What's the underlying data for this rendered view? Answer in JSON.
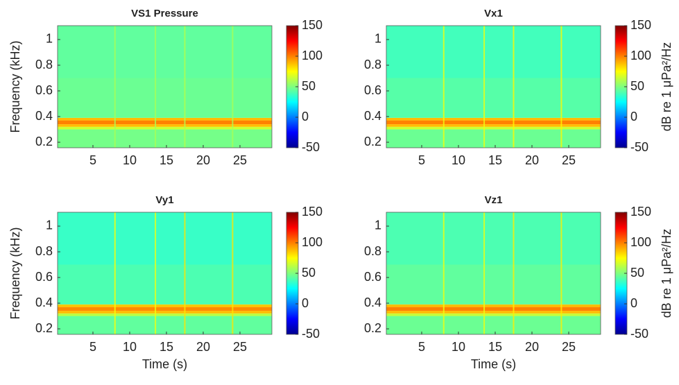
{
  "colormap": [
    {
      "pos": 0,
      "color": "#00008f"
    },
    {
      "pos": 0.125,
      "color": "#0000ff"
    },
    {
      "pos": 0.375,
      "color": "#00ffff"
    },
    {
      "pos": 0.5,
      "color": "#7fff7f"
    },
    {
      "pos": 0.625,
      "color": "#ffff00"
    },
    {
      "pos": 0.875,
      "color": "#ff0000"
    },
    {
      "pos": 1,
      "color": "#800000"
    }
  ],
  "chart_data": [
    {
      "type": "spectrogram",
      "title": "VS1 Pressure",
      "ylabel": "Frequency (kHz)",
      "xlim": [
        0.19,
        29.34
      ],
      "xticks": [
        5,
        10,
        15,
        20,
        25
      ],
      "ylim": [
        0.157,
        1.108
      ],
      "yticks": [
        0.2,
        0.4,
        0.6,
        0.8,
        1
      ],
      "freq_bins": [
        0.157,
        0.3,
        0.32,
        0.34,
        0.37,
        0.39,
        0.7,
        1.108
      ],
      "levels": [
        48,
        65,
        88,
        100,
        88,
        46,
        44
      ],
      "transients": {
        "x": [
          8,
          13.5,
          17.5,
          24
        ],
        "values": [
          58,
          58,
          60,
          58
        ]
      },
      "clim": [
        -50,
        150
      ],
      "cticks": [
        -50,
        0,
        50,
        100,
        150
      ]
    },
    {
      "type": "spectrogram",
      "title": "Vx1",
      "xlim": [
        0.19,
        29.34
      ],
      "xticks": [
        5,
        10,
        15,
        20,
        25
      ],
      "ylim": [
        0.157,
        1.108
      ],
      "yticks": [
        0.2,
        0.4,
        0.6,
        0.8,
        1
      ],
      "freq_bins": [
        0.157,
        0.3,
        0.32,
        0.34,
        0.37,
        0.39,
        0.7,
        1.108
      ],
      "levels": [
        46,
        65,
        88,
        100,
        88,
        42,
        38
      ],
      "transients": {
        "x": [
          8,
          13.5,
          17.5,
          24
        ],
        "values": [
          72,
          72,
          76,
          76
        ]
      },
      "clim": [
        -50,
        150
      ],
      "cticks": [
        -50,
        0,
        50,
        100,
        150
      ],
      "clabel": "dB re 1 μPa²/Hz"
    },
    {
      "type": "spectrogram",
      "title": "Vy1",
      "ylabel": "Frequency (kHz)",
      "xlabel": "Time (s)",
      "xlim": [
        0.19,
        29.34
      ],
      "xticks": [
        5,
        10,
        15,
        20,
        25
      ],
      "ylim": [
        0.157,
        1.108
      ],
      "yticks": [
        0.2,
        0.4,
        0.6,
        0.8,
        1
      ],
      "freq_bins": [
        0.157,
        0.3,
        0.32,
        0.34,
        0.37,
        0.39,
        0.7,
        1.108
      ],
      "levels": [
        44,
        62,
        88,
        98,
        86,
        40,
        36
      ],
      "transients": {
        "x": [
          8,
          13.5,
          17.5,
          24
        ],
        "values": [
          74,
          72,
          80,
          80
        ]
      },
      "clim": [
        -50,
        150
      ],
      "cticks": [
        -50,
        0,
        50,
        100,
        150
      ]
    },
    {
      "type": "spectrogram",
      "title": "Vz1",
      "xlabel": "Time (s)",
      "xlim": [
        0.19,
        29.34
      ],
      "xticks": [
        5,
        10,
        15,
        20,
        25
      ],
      "ylim": [
        0.157,
        1.108
      ],
      "yticks": [
        0.2,
        0.4,
        0.6,
        0.8,
        1
      ],
      "freq_bins": [
        0.157,
        0.3,
        0.32,
        0.34,
        0.37,
        0.39,
        0.7,
        1.108
      ],
      "levels": [
        46,
        64,
        88,
        100,
        88,
        44,
        40
      ],
      "transients": {
        "x": [
          8,
          13.5,
          17.5,
          24
        ],
        "values": [
          72,
          72,
          78,
          78
        ]
      },
      "clim": [
        -50,
        150
      ],
      "cticks": [
        -50,
        0,
        50,
        100,
        150
      ],
      "clabel": "dB re 1 μPa²/Hz"
    }
  ]
}
